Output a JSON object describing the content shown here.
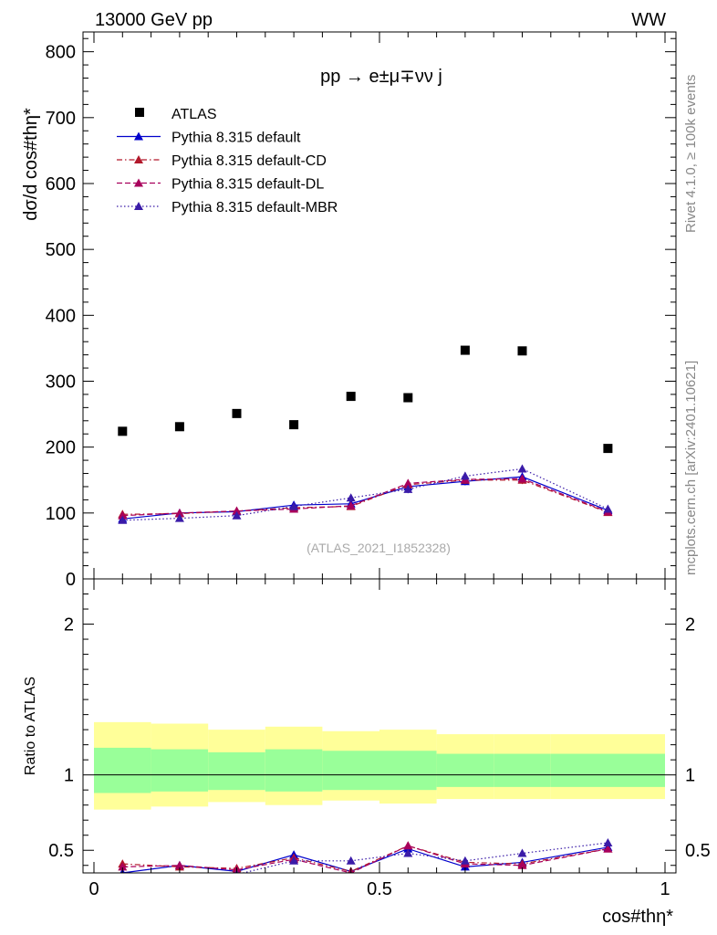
{
  "header": {
    "energy_label": "13000 GeV pp",
    "process_tag": "WW",
    "side_label_top": "Rivet 4.1.0, ≥ 100k events",
    "side_label_bottom": "mcplots.cern.ch [arXiv:2401.10621]"
  },
  "chart_data": [
    {
      "type": "scatter",
      "title": "pp → e±μ∓νν j",
      "ylabel": "dσ/d cos#thη*",
      "xlabel": "cos#thη*",
      "watermark": "(ATLAS_2021_I1852328)",
      "xlim": [
        0,
        1
      ],
      "ylim": [
        0,
        830
      ],
      "yticks": [
        0,
        100,
        200,
        300,
        400,
        500,
        600,
        700,
        800
      ],
      "x": [
        0.05,
        0.15,
        0.25,
        0.35,
        0.45,
        0.55,
        0.65,
        0.75,
        0.9
      ],
      "series": [
        {
          "name": "ATLAS",
          "color": "#000000",
          "marker": "square",
          "values": [
            224,
            231,
            251,
            234,
            277,
            275,
            347,
            346,
            198
          ]
        },
        {
          "name": "Pythia 8.315 default",
          "color": "#0000cc",
          "marker": "triangle",
          "line": "solid",
          "values": [
            91,
            100,
            102,
            112,
            114,
            140,
            148,
            155,
            104
          ],
          "errors": [
            4,
            4,
            4,
            4,
            5,
            6,
            6,
            6,
            4
          ]
        },
        {
          "name": "Pythia 8.315 default-CD",
          "color": "#b2182b",
          "marker": "triangle",
          "line": "dashdot",
          "values": [
            98,
            99,
            103,
            108,
            110,
            143,
            150,
            150,
            101
          ],
          "errors": [
            4,
            4,
            4,
            4,
            5,
            6,
            6,
            6,
            4
          ]
        },
        {
          "name": "Pythia 8.315 default-DL",
          "color": "#a8005c",
          "marker": "triangle",
          "line": "dashed",
          "values": [
            96,
            100,
            103,
            106,
            111,
            145,
            151,
            152,
            102
          ],
          "errors": [
            4,
            4,
            4,
            4,
            5,
            6,
            6,
            6,
            4
          ]
        },
        {
          "name": "Pythia 8.315 default-MBR",
          "color": "#3a1ba8",
          "marker": "triangle",
          "line": "dotted",
          "values": [
            89,
            92,
            96,
            110,
            123,
            136,
            156,
            167,
            106
          ],
          "errors": [
            4,
            4,
            4,
            4,
            5,
            6,
            6,
            6,
            4
          ]
        }
      ]
    },
    {
      "type": "scatter",
      "ylabel": "Ratio to ATLAS",
      "xlim": [
        0,
        1
      ],
      "ylim": [
        0.35,
        2.3
      ],
      "yticks": [
        0.5,
        1,
        2
      ],
      "xticks": [
        0,
        0.5,
        1
      ],
      "xtick_labels": [
        "0",
        "0.5",
        "1"
      ],
      "bands": {
        "bin_edges": [
          0,
          0.1,
          0.2,
          0.3,
          0.4,
          0.5,
          0.6,
          0.7,
          0.8,
          1.0
        ],
        "inner_low": [
          0.88,
          0.89,
          0.9,
          0.89,
          0.9,
          0.9,
          0.92,
          0.92,
          0.92
        ],
        "inner_high": [
          1.18,
          1.17,
          1.15,
          1.17,
          1.16,
          1.16,
          1.14,
          1.14,
          1.14
        ],
        "outer_low": [
          0.77,
          0.79,
          0.82,
          0.8,
          0.83,
          0.81,
          0.84,
          0.84,
          0.84
        ],
        "outer_high": [
          1.35,
          1.34,
          1.3,
          1.32,
          1.29,
          1.3,
          1.27,
          1.27,
          1.27
        ],
        "inner_color": "#99ff99",
        "outer_color": "#ffff99"
      },
      "x": [
        0.05,
        0.15,
        0.25,
        0.35,
        0.45,
        0.55,
        0.65,
        0.75,
        0.9
      ],
      "series": [
        {
          "name": "Pythia 8.315 default",
          "color": "#0000cc",
          "line": "solid",
          "values": [
            0.35,
            0.4,
            0.36,
            0.47,
            0.36,
            0.51,
            0.39,
            0.42,
            0.52
          ]
        },
        {
          "name": "Pythia 8.315 default-CD",
          "color": "#b2182b",
          "line": "dashdot",
          "values": [
            0.41,
            0.39,
            0.38,
            0.45,
            0.36,
            0.53,
            0.42,
            0.41,
            0.51
          ]
        },
        {
          "name": "Pythia 8.315 default-DL",
          "color": "#a8005c",
          "line": "dashed",
          "values": [
            0.39,
            0.4,
            0.37,
            0.44,
            0.35,
            0.53,
            0.41,
            0.4,
            0.51
          ]
        },
        {
          "name": "Pythia 8.315 default-MBR",
          "color": "#3a1ba8",
          "line": "dotted",
          "values": [
            0.33,
            0.33,
            0.34,
            0.43,
            0.43,
            0.48,
            0.43,
            0.48,
            0.55
          ]
        }
      ]
    }
  ]
}
